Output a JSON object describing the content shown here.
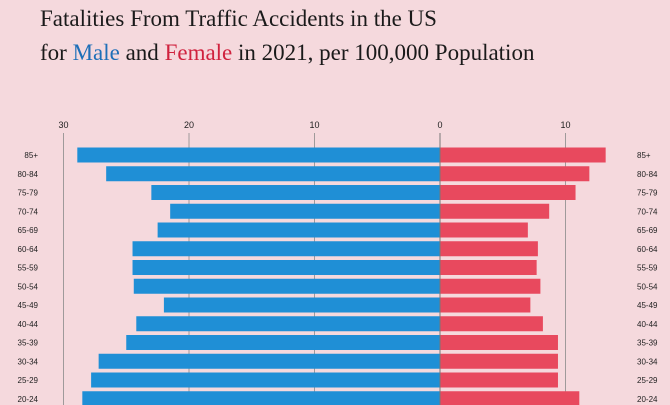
{
  "header": {
    "title_line1": "Fatalities From Traffic Accidents in the US",
    "title_prefix": "for ",
    "male_word": "Male",
    "and_word": " and ",
    "female_word": "Female",
    "title_suffix": " in 2021, per 100,000 Population"
  },
  "chart_data": {
    "type": "bar",
    "orientation": "horizontal-population-pyramid",
    "title": "Fatalities From Traffic Accidents in the US for Male and Female in 2021, per 100,000 Population",
    "categories": [
      "85+",
      "80-84",
      "75-79",
      "70-74",
      "65-69",
      "60-64",
      "55-59",
      "50-54",
      "45-49",
      "40-44",
      "35-39",
      "30-34",
      "25-29",
      "20-24"
    ],
    "series": [
      {
        "name": "Male",
        "color": "#1f8fd6",
        "values": [
          28.9,
          26.6,
          23.0,
          21.5,
          22.5,
          24.5,
          24.5,
          24.4,
          22.0,
          24.2,
          25.0,
          27.2,
          27.8,
          28.5
        ]
      },
      {
        "name": "Female",
        "color": "#e8495e",
        "values": [
          13.2,
          11.9,
          10.8,
          8.7,
          7.0,
          7.8,
          7.7,
          8.0,
          7.2,
          8.2,
          9.4,
          9.4,
          9.4,
          11.1
        ]
      }
    ],
    "x_ticks_left": [
      "30",
      "20",
      "10",
      "0"
    ],
    "x_ticks_right": [
      "10"
    ],
    "xlim": [
      -30,
      13.5
    ],
    "grid": true
  }
}
